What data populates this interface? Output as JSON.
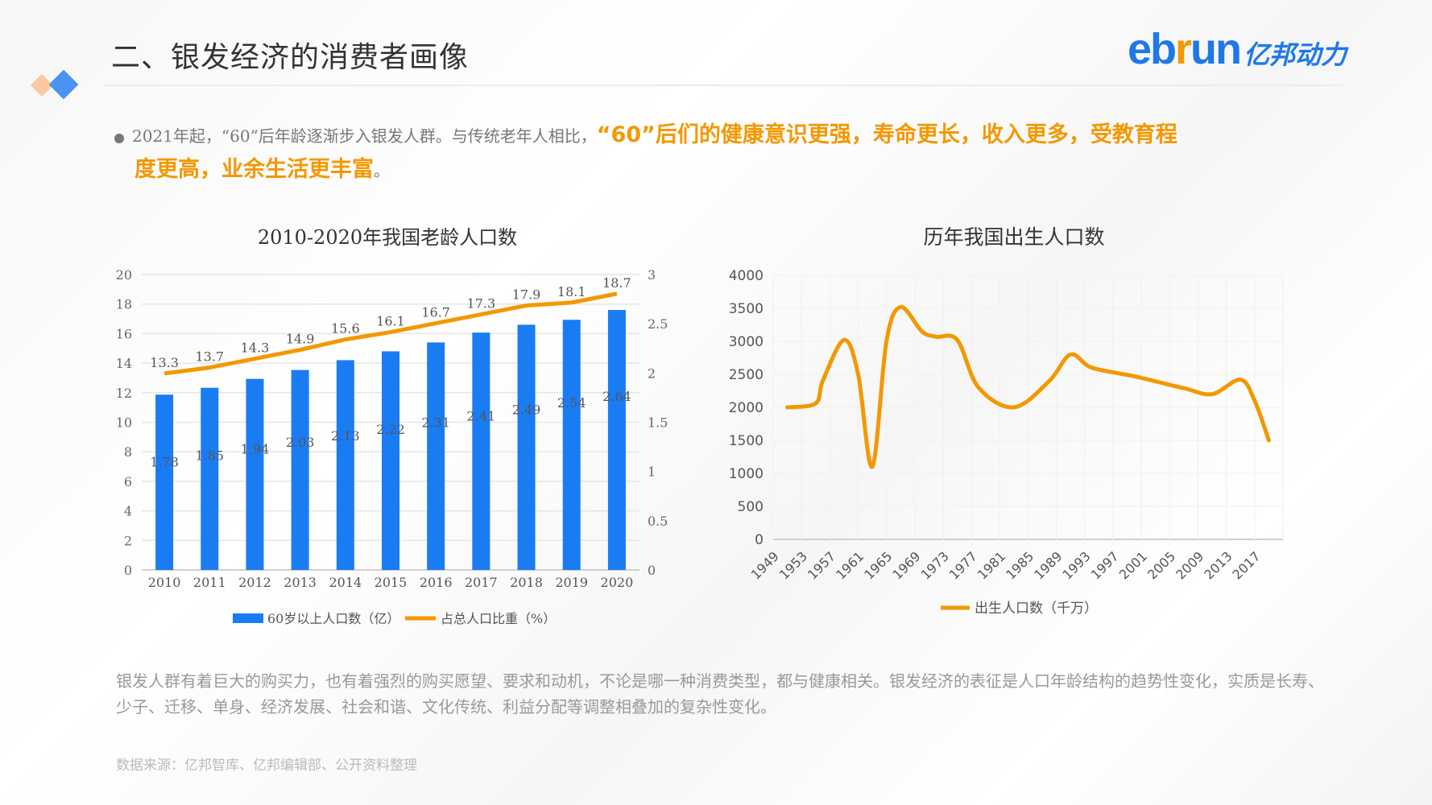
{
  "header": {
    "title": "二、银发经济的消费者画像",
    "logo_latin_b": "eb",
    "logo_latin_r": "r",
    "logo_latin_u": "un",
    "logo_cn": "亿邦动力"
  },
  "bullet": {
    "normal": "2021年起，“60”后年龄逐渐步入银发人群。与传统老年人相比，",
    "highlight_1": "“60”后们的健康意识更强，寿命更长，收入更多，受教育程",
    "highlight_2": "度更高，业余生活更丰富",
    "end": "。"
  },
  "paragraph": "银发人群有着巨大的购买力，也有着强烈的购买愿望、要求和动机，不论是哪一种消费类型，都与健康相关。银发经济的表征是人口年龄结构的趋势性变化，实质是长寿、少子、迁移、单身、经济发展、社会和谐、文化传统、利益分配等调整相叠加的复杂性变化。",
  "source": "数据来源：亿邦智库、亿邦编辑部、公开资料整理",
  "colors": {
    "blue": "#1a7cf2",
    "orange": "#f39800",
    "logo_blue": "#1f78e8"
  },
  "chart_data": [
    {
      "type": "bar+line",
      "title": "2010-2020年我国老龄人口数",
      "categories": [
        "2010",
        "2011",
        "2012",
        "2013",
        "2014",
        "2015",
        "2016",
        "2017",
        "2018",
        "2019",
        "2020"
      ],
      "left_axis": {
        "ticks": [
          "0",
          "2",
          "4",
          "6",
          "8",
          "10",
          "12",
          "14",
          "16",
          "18",
          "20"
        ],
        "range": [
          0,
          20
        ]
      },
      "right_axis": {
        "ticks": [
          "0",
          "0.5",
          "1",
          "1.5",
          "2",
          "2.5",
          "3"
        ],
        "range": [
          0,
          3
        ]
      },
      "series": [
        {
          "name": "60岁以上人口数（亿）",
          "type": "bar",
          "axis": "right",
          "color": "#1a7cf2",
          "values": [
            1.78,
            1.85,
            1.94,
            2.03,
            2.13,
            2.22,
            2.31,
            2.41,
            2.49,
            2.54,
            2.64
          ],
          "labels": [
            "1.78",
            "1.85",
            "1.94",
            "2.03",
            "2.13",
            "2.22",
            "2.31",
            "2.41",
            "2.49",
            "2.54",
            "2.64"
          ]
        },
        {
          "name": "占总人口比重（%）",
          "type": "line",
          "axis": "left",
          "color": "#f39800",
          "values": [
            13.3,
            13.7,
            14.3,
            14.9,
            15.6,
            16.1,
            16.7,
            17.3,
            17.9,
            18.1,
            18.7
          ],
          "labels": [
            "13.3",
            "13.7",
            "14.3",
            "14.9",
            "15.6",
            "16.1",
            "16.7",
            "17.3",
            "17.9",
            "18.1",
            "18.7"
          ]
        }
      ],
      "grid": true,
      "legend": "bottom"
    },
    {
      "type": "line",
      "title": "历年我国出生人口数",
      "x_ticks": [
        "1949",
        "1953",
        "1957",
        "1961",
        "1965",
        "1969",
        "1973",
        "1977",
        "1981",
        "1985",
        "1989",
        "1993",
        "1997",
        "2001",
        "2005",
        "2009",
        "2013",
        "2017"
      ],
      "xlim": [
        1949,
        2021
      ],
      "y_ticks": [
        "0",
        "500",
        "1000",
        "1500",
        "2000",
        "2500",
        "3000",
        "3500",
        "4000"
      ],
      "ylim": [
        0,
        4000
      ],
      "series": [
        {
          "name": "出生人口数（千万）",
          "color": "#f39800",
          "smooth": true,
          "points": [
            [
              1951,
              2000
            ],
            [
              1955,
              2060
            ],
            [
              1956,
              2400
            ],
            [
              1959,
              3020
            ],
            [
              1961,
              2500
            ],
            [
              1963,
              1100
            ],
            [
              1965,
              3000
            ],
            [
              1967,
              3520
            ],
            [
              1970,
              3150
            ],
            [
              1972,
              3070
            ],
            [
              1975,
              3020
            ],
            [
              1978,
              2300
            ],
            [
              1983,
              2000
            ],
            [
              1988,
              2400
            ],
            [
              1991,
              2800
            ],
            [
              1994,
              2600
            ],
            [
              2000,
              2470
            ],
            [
              2007,
              2290
            ],
            [
              2011,
              2200
            ],
            [
              2015,
              2420
            ],
            [
              2017,
              2100
            ],
            [
              2019,
              1500
            ]
          ]
        }
      ],
      "grid": true,
      "legend": "bottom"
    }
  ]
}
